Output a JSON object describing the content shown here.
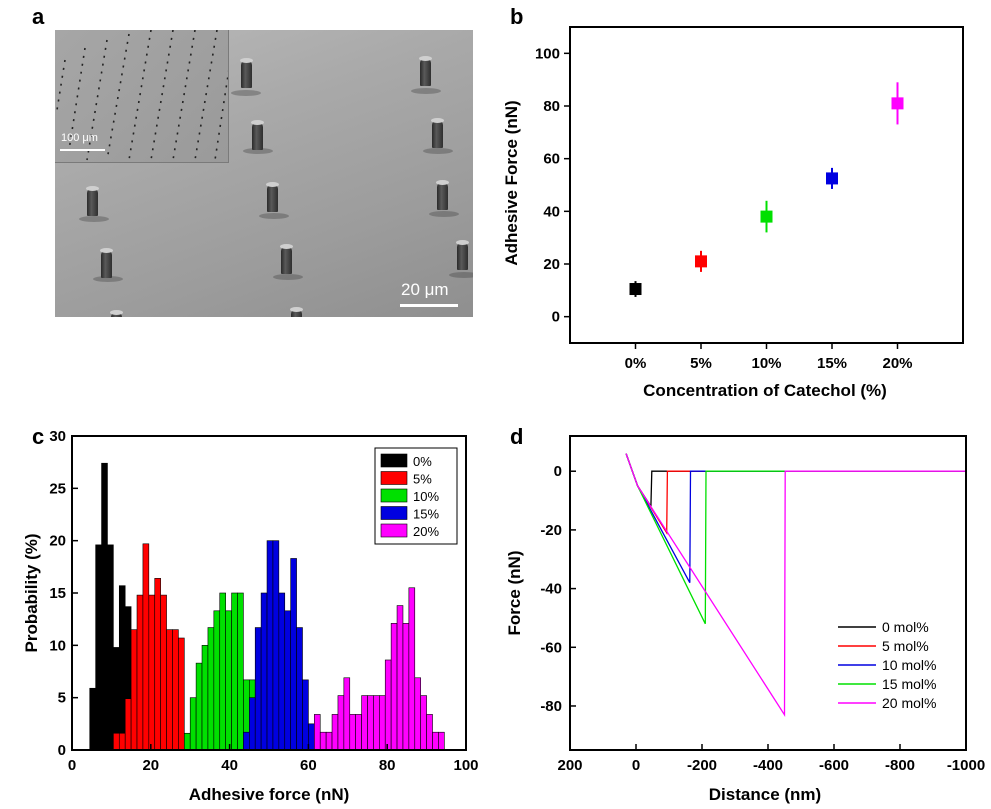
{
  "panels": {
    "a": {
      "letter": "a",
      "scale_bar": "20 μm",
      "inset_scale_bar": "100 μm"
    },
    "b": {
      "letter": "b"
    },
    "c": {
      "letter": "c"
    },
    "d": {
      "letter": "d"
    }
  },
  "colors": {
    "c0": "#000000",
    "c5": "#ff0000",
    "c10": "#00e000",
    "c15": "#0000e0",
    "c20": "#ff00ff"
  },
  "chart_data": [
    {
      "id": "b",
      "type": "scatter",
      "xlabel": "Concentration of Catechol (%)",
      "ylabel": "Adhesive Force (nN)",
      "categories": [
        "0%",
        "5%",
        "10%",
        "15%",
        "20%"
      ],
      "values": [
        10.5,
        21,
        38,
        52.5,
        81
      ],
      "errors": [
        3,
        4,
        6,
        4,
        8
      ],
      "ylim": [
        -10,
        110
      ],
      "yticks": [
        0,
        20,
        40,
        60,
        80,
        100
      ],
      "colors": [
        "#000000",
        "#ff0000",
        "#00e000",
        "#0000e0",
        "#ff00ff"
      ]
    },
    {
      "id": "c",
      "type": "bar",
      "xlabel": "Adhesive force (nN)",
      "ylabel": "Probability (%)",
      "xlim": [
        0,
        100
      ],
      "ylim": [
        0,
        30
      ],
      "xticks": [
        0,
        20,
        40,
        60,
        80,
        100
      ],
      "yticks": [
        0,
        5,
        10,
        15,
        20,
        25,
        30
      ],
      "bin_width": 1.5,
      "legend": "top-right",
      "series": [
        {
          "name": "0%",
          "color": "#000000",
          "start": 4.5,
          "values": [
            5.9,
            19.6,
            27.4,
            19.6,
            9.8,
            15.7,
            13.7
          ]
        },
        {
          "name": "5%",
          "color": "#ff0000",
          "start": 10.5,
          "values": [
            1.6,
            1.6,
            4.9,
            11.5,
            14.8,
            19.7,
            14.8,
            16.4,
            14.8,
            11.5,
            11.5,
            10.7
          ]
        },
        {
          "name": "10%",
          "color": "#00e000",
          "start": 28.5,
          "values": [
            1.6,
            5,
            8.3,
            10,
            11.7,
            13.3,
            15,
            13.3,
            15,
            15,
            6.7,
            6.7
          ]
        },
        {
          "name": "15%",
          "color": "#0000e0",
          "start": 43.5,
          "values": [
            1.7,
            5,
            11.7,
            15,
            20,
            20,
            15,
            13.3,
            18.3,
            11.7,
            6.7,
            2.5
          ]
        },
        {
          "name": "20%",
          "color": "#ff00ff",
          "start": 61.5,
          "values": [
            3.4,
            1.7,
            1.7,
            3.4,
            5.2,
            6.9,
            3.4,
            3.4,
            5.2,
            5.2,
            5.2,
            5.2,
            8.6,
            12.1,
            13.8,
            12.1,
            15.5,
            6.9,
            5.2,
            3.4,
            1.7,
            1.7
          ]
        }
      ]
    },
    {
      "id": "d",
      "type": "line",
      "xlabel": "Distance (nm)",
      "ylabel": "Force (nN)",
      "xlim": [
        200,
        -1000
      ],
      "ylim": [
        -95,
        12
      ],
      "xticks": [
        200,
        0,
        -200,
        -400,
        -600,
        -800,
        -1000
      ],
      "yticks": [
        0,
        -20,
        -40,
        -60,
        -80
      ],
      "legend": "bottom-right",
      "series": [
        {
          "name": "0 mol%",
          "color": "#000000",
          "x": [
            30,
            -5,
            -45,
            -48,
            -55,
            -1000
          ],
          "y": [
            6,
            -5,
            -12,
            0,
            0,
            0
          ]
        },
        {
          "name": "5 mol%",
          "color": "#ff0000",
          "x": [
            30,
            -5,
            -93,
            -95,
            -110,
            -1000
          ],
          "y": [
            6,
            -5,
            -21,
            0,
            0,
            0
          ]
        },
        {
          "name": "10 mol%",
          "color": "#0000e0",
          "x": [
            30,
            -5,
            -163,
            -165,
            -180,
            -1000
          ],
          "y": [
            6,
            -5,
            -38,
            0,
            0,
            0
          ]
        },
        {
          "name": "15 mol%",
          "color": "#00e000",
          "x": [
            30,
            -5,
            -210,
            -212,
            -230,
            -1000
          ],
          "y": [
            6,
            -5,
            -52,
            0,
            0,
            0
          ]
        },
        {
          "name": "20 mol%",
          "color": "#ff00ff",
          "x": [
            30,
            -5,
            -450,
            -452,
            -470,
            -1000
          ],
          "y": [
            6,
            -5,
            -83,
            0,
            0,
            0
          ]
        }
      ]
    }
  ]
}
